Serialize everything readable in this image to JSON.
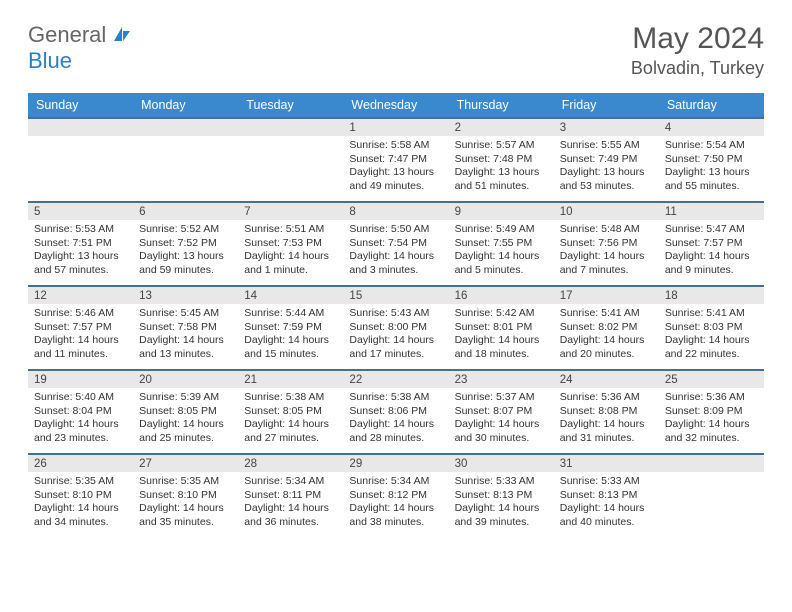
{
  "logo": {
    "textA": "General",
    "textB": "Blue",
    "color_a": "#666666",
    "color_b": "#2a7fc9"
  },
  "title": "May 2024",
  "location": "Bolvadin, Turkey",
  "colors": {
    "header_bg": "#3a89cf",
    "header_text": "#ffffff",
    "week_divider": "#486f8e",
    "daynum_bg": "#e8e8e8",
    "text": "#333333",
    "page_bg": "#ffffff"
  },
  "day_headers": [
    "Sunday",
    "Monday",
    "Tuesday",
    "Wednesday",
    "Thursday",
    "Friday",
    "Saturday"
  ],
  "weeks": [
    [
      {
        "num": "",
        "lines": []
      },
      {
        "num": "",
        "lines": []
      },
      {
        "num": "",
        "lines": []
      },
      {
        "num": "1",
        "lines": [
          "Sunrise: 5:58 AM",
          "Sunset: 7:47 PM",
          "Daylight: 13 hours",
          "and 49 minutes."
        ]
      },
      {
        "num": "2",
        "lines": [
          "Sunrise: 5:57 AM",
          "Sunset: 7:48 PM",
          "Daylight: 13 hours",
          "and 51 minutes."
        ]
      },
      {
        "num": "3",
        "lines": [
          "Sunrise: 5:55 AM",
          "Sunset: 7:49 PM",
          "Daylight: 13 hours",
          "and 53 minutes."
        ]
      },
      {
        "num": "4",
        "lines": [
          "Sunrise: 5:54 AM",
          "Sunset: 7:50 PM",
          "Daylight: 13 hours",
          "and 55 minutes."
        ]
      }
    ],
    [
      {
        "num": "5",
        "lines": [
          "Sunrise: 5:53 AM",
          "Sunset: 7:51 PM",
          "Daylight: 13 hours",
          "and 57 minutes."
        ]
      },
      {
        "num": "6",
        "lines": [
          "Sunrise: 5:52 AM",
          "Sunset: 7:52 PM",
          "Daylight: 13 hours",
          "and 59 minutes."
        ]
      },
      {
        "num": "7",
        "lines": [
          "Sunrise: 5:51 AM",
          "Sunset: 7:53 PM",
          "Daylight: 14 hours",
          "and 1 minute."
        ]
      },
      {
        "num": "8",
        "lines": [
          "Sunrise: 5:50 AM",
          "Sunset: 7:54 PM",
          "Daylight: 14 hours",
          "and 3 minutes."
        ]
      },
      {
        "num": "9",
        "lines": [
          "Sunrise: 5:49 AM",
          "Sunset: 7:55 PM",
          "Daylight: 14 hours",
          "and 5 minutes."
        ]
      },
      {
        "num": "10",
        "lines": [
          "Sunrise: 5:48 AM",
          "Sunset: 7:56 PM",
          "Daylight: 14 hours",
          "and 7 minutes."
        ]
      },
      {
        "num": "11",
        "lines": [
          "Sunrise: 5:47 AM",
          "Sunset: 7:57 PM",
          "Daylight: 14 hours",
          "and 9 minutes."
        ]
      }
    ],
    [
      {
        "num": "12",
        "lines": [
          "Sunrise: 5:46 AM",
          "Sunset: 7:57 PM",
          "Daylight: 14 hours",
          "and 11 minutes."
        ]
      },
      {
        "num": "13",
        "lines": [
          "Sunrise: 5:45 AM",
          "Sunset: 7:58 PM",
          "Daylight: 14 hours",
          "and 13 minutes."
        ]
      },
      {
        "num": "14",
        "lines": [
          "Sunrise: 5:44 AM",
          "Sunset: 7:59 PM",
          "Daylight: 14 hours",
          "and 15 minutes."
        ]
      },
      {
        "num": "15",
        "lines": [
          "Sunrise: 5:43 AM",
          "Sunset: 8:00 PM",
          "Daylight: 14 hours",
          "and 17 minutes."
        ]
      },
      {
        "num": "16",
        "lines": [
          "Sunrise: 5:42 AM",
          "Sunset: 8:01 PM",
          "Daylight: 14 hours",
          "and 18 minutes."
        ]
      },
      {
        "num": "17",
        "lines": [
          "Sunrise: 5:41 AM",
          "Sunset: 8:02 PM",
          "Daylight: 14 hours",
          "and 20 minutes."
        ]
      },
      {
        "num": "18",
        "lines": [
          "Sunrise: 5:41 AM",
          "Sunset: 8:03 PM",
          "Daylight: 14 hours",
          "and 22 minutes."
        ]
      }
    ],
    [
      {
        "num": "19",
        "lines": [
          "Sunrise: 5:40 AM",
          "Sunset: 8:04 PM",
          "Daylight: 14 hours",
          "and 23 minutes."
        ]
      },
      {
        "num": "20",
        "lines": [
          "Sunrise: 5:39 AM",
          "Sunset: 8:05 PM",
          "Daylight: 14 hours",
          "and 25 minutes."
        ]
      },
      {
        "num": "21",
        "lines": [
          "Sunrise: 5:38 AM",
          "Sunset: 8:05 PM",
          "Daylight: 14 hours",
          "and 27 minutes."
        ]
      },
      {
        "num": "22",
        "lines": [
          "Sunrise: 5:38 AM",
          "Sunset: 8:06 PM",
          "Daylight: 14 hours",
          "and 28 minutes."
        ]
      },
      {
        "num": "23",
        "lines": [
          "Sunrise: 5:37 AM",
          "Sunset: 8:07 PM",
          "Daylight: 14 hours",
          "and 30 minutes."
        ]
      },
      {
        "num": "24",
        "lines": [
          "Sunrise: 5:36 AM",
          "Sunset: 8:08 PM",
          "Daylight: 14 hours",
          "and 31 minutes."
        ]
      },
      {
        "num": "25",
        "lines": [
          "Sunrise: 5:36 AM",
          "Sunset: 8:09 PM",
          "Daylight: 14 hours",
          "and 32 minutes."
        ]
      }
    ],
    [
      {
        "num": "26",
        "lines": [
          "Sunrise: 5:35 AM",
          "Sunset: 8:10 PM",
          "Daylight: 14 hours",
          "and 34 minutes."
        ]
      },
      {
        "num": "27",
        "lines": [
          "Sunrise: 5:35 AM",
          "Sunset: 8:10 PM",
          "Daylight: 14 hours",
          "and 35 minutes."
        ]
      },
      {
        "num": "28",
        "lines": [
          "Sunrise: 5:34 AM",
          "Sunset: 8:11 PM",
          "Daylight: 14 hours",
          "and 36 minutes."
        ]
      },
      {
        "num": "29",
        "lines": [
          "Sunrise: 5:34 AM",
          "Sunset: 8:12 PM",
          "Daylight: 14 hours",
          "and 38 minutes."
        ]
      },
      {
        "num": "30",
        "lines": [
          "Sunrise: 5:33 AM",
          "Sunset: 8:13 PM",
          "Daylight: 14 hours",
          "and 39 minutes."
        ]
      },
      {
        "num": "31",
        "lines": [
          "Sunrise: 5:33 AM",
          "Sunset: 8:13 PM",
          "Daylight: 14 hours",
          "and 40 minutes."
        ]
      },
      {
        "num": "",
        "lines": []
      }
    ]
  ]
}
